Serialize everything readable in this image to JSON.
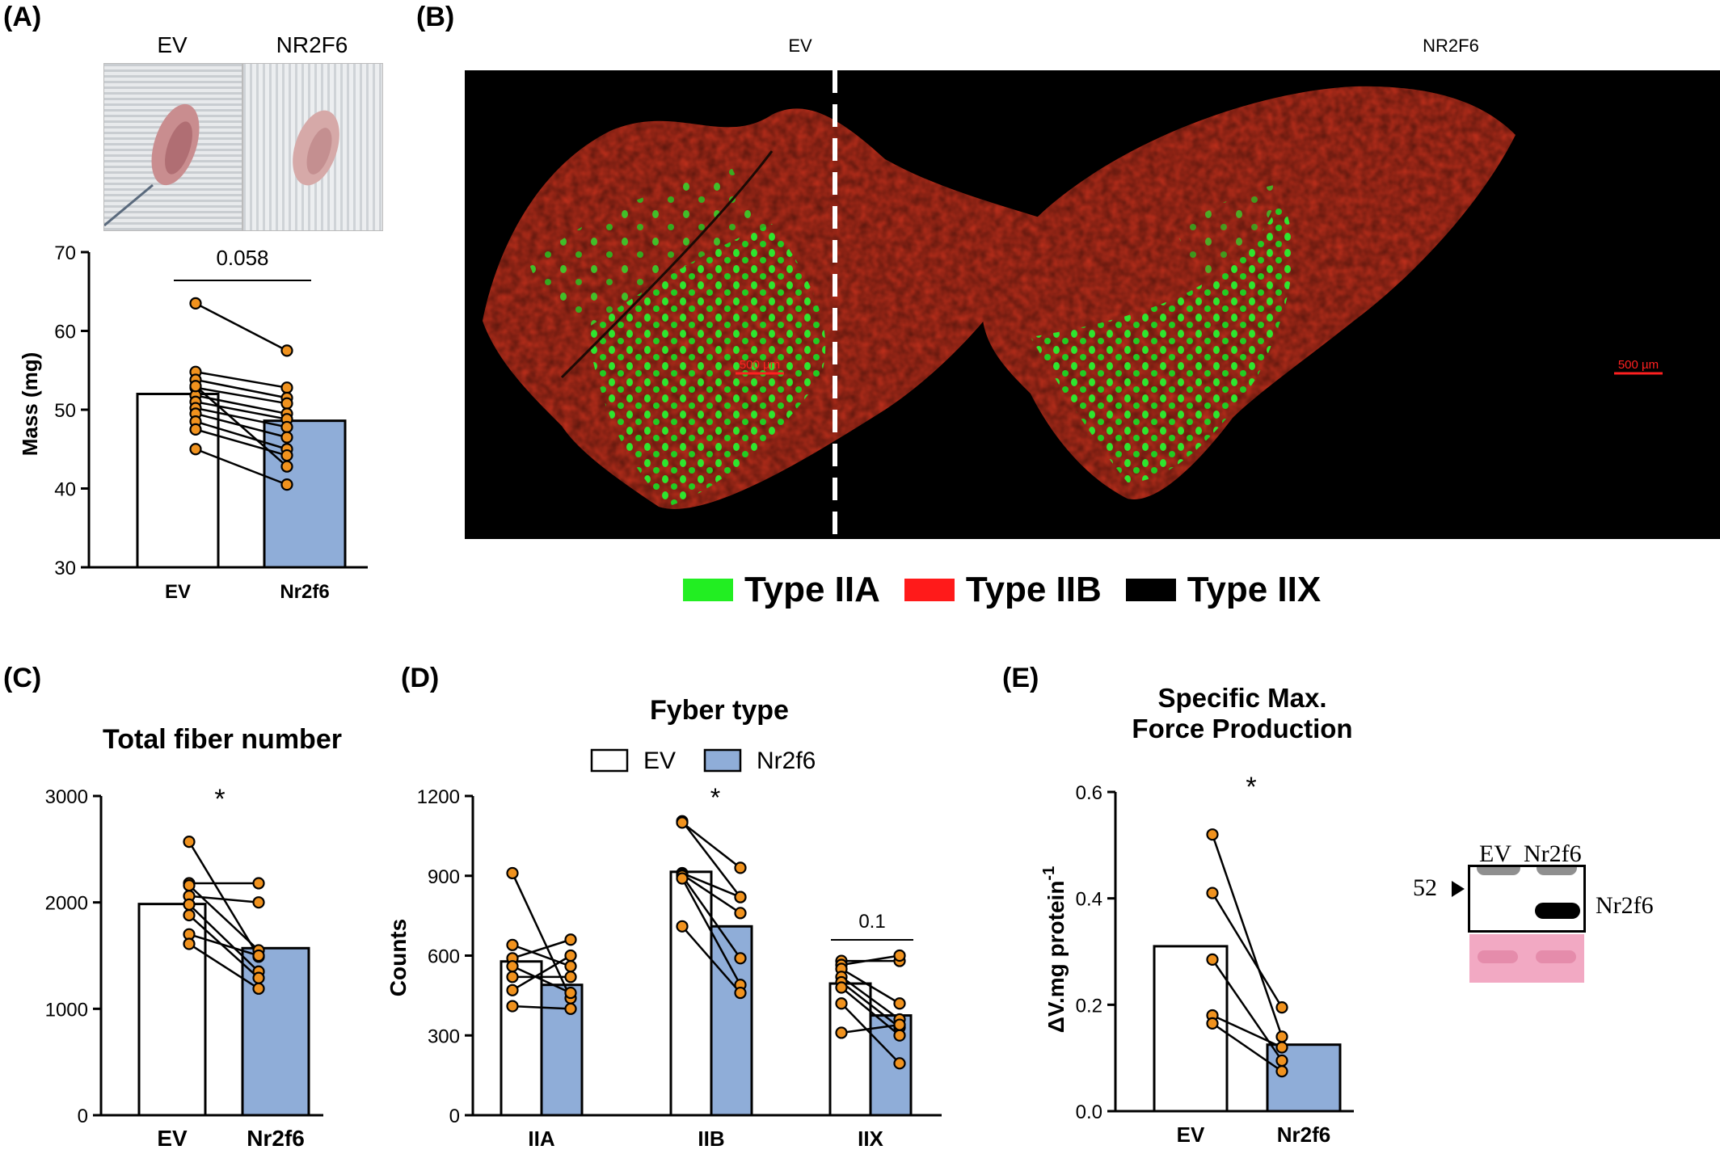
{
  "figure": {
    "panel_labels": [
      "(A)",
      "(B)",
      "(C)",
      "(D)",
      "(E)"
    ]
  },
  "panel_a": {
    "photo_labels": [
      "EV",
      "NR2F6"
    ]
  },
  "panel_b": {
    "image_labels": [
      "EV",
      "NR2F6"
    ],
    "scale_bar": "500 µm",
    "legend": [
      {
        "label": "Type IIA",
        "color": "#22ee22"
      },
      {
        "label": "Type IIB",
        "color": "#ff1a1a"
      },
      {
        "label": "Type IIX",
        "color": "#000000"
      }
    ]
  },
  "panel_e": {
    "blot": {
      "lane_labels": [
        "EV",
        "Nr2f6"
      ],
      "marker": "52",
      "band_label": "Nr2f6"
    }
  },
  "chart_data": [
    {
      "type": "bar",
      "panel": "A",
      "categories": [
        "EV",
        "Nr2f6"
      ],
      "values": [
        52,
        48.6
      ],
      "ylabel": "Mass (mg)",
      "ylim": [
        30,
        70
      ],
      "yticks": [
        "30",
        "40",
        "50",
        "60",
        "70"
      ],
      "annotation": "0.058",
      "colors": [
        "#ffffff",
        "#8fadd8"
      ],
      "paired_points": [
        [
          63.5,
          57.5
        ],
        [
          54.8,
          52.8
        ],
        [
          53.8,
          51.5
        ],
        [
          52.8,
          50.8
        ],
        [
          51.8,
          49.5
        ],
        [
          51.0,
          48.8
        ],
        [
          50.2,
          47.8
        ],
        [
          49.5,
          46.5
        ],
        [
          48.5,
          45.0
        ],
        [
          47.5,
          44.2
        ],
        [
          45.0,
          40.5
        ],
        [
          53.0,
          42.8
        ]
      ]
    },
    {
      "type": "bar",
      "panel": "C",
      "title": "Total fiber number",
      "categories": [
        "EV",
        "Nr2f6"
      ],
      "values": [
        1985,
        1570
      ],
      "ylim": [
        0,
        3000
      ],
      "yticks": [
        "0",
        "1000",
        "2000",
        "3000"
      ],
      "annotation": "*",
      "colors": [
        "#ffffff",
        "#8fadd8"
      ],
      "paired_points": [
        [
          2570,
          1490
        ],
        [
          2180,
          2180
        ],
        [
          2160,
          1550
        ],
        [
          2060,
          2000
        ],
        [
          1980,
          1350
        ],
        [
          1880,
          1290
        ],
        [
          1700,
          1500
        ],
        [
          1610,
          1190
        ]
      ]
    },
    {
      "type": "bar",
      "panel": "D",
      "title": "Fyber type",
      "ylabel": "Counts",
      "categories": [
        "IIA",
        "IIB",
        "IIX"
      ],
      "series": [
        {
          "name": "EV",
          "values": [
            578,
            915,
            495
          ],
          "color": "#ffffff"
        },
        {
          "name": "Nr2f6",
          "values": [
            490,
            710,
            375
          ],
          "color": "#8fadd8"
        }
      ],
      "ylim": [
        0,
        1200
      ],
      "yticks": [
        "0",
        "300",
        "600",
        "900",
        "1200"
      ],
      "annotations": {
        "IIB": "*",
        "IIX": "0.1"
      },
      "paired_points": {
        "IIA": [
          [
            910,
            440
          ],
          [
            640,
            560
          ],
          [
            590,
            660
          ],
          [
            560,
            460
          ],
          [
            520,
            520
          ],
          [
            470,
            600
          ],
          [
            410,
            400
          ]
        ],
        "IIB": [
          [
            1105,
            820
          ],
          [
            1100,
            930
          ],
          [
            910,
            820
          ],
          [
            905,
            760
          ],
          [
            900,
            590
          ],
          [
            890,
            490
          ],
          [
            710,
            460
          ]
        ],
        "IIX": [
          [
            580,
            580
          ],
          [
            565,
            600
          ],
          [
            550,
            420
          ],
          [
            520,
            360
          ],
          [
            500,
            330
          ],
          [
            480,
            300
          ],
          [
            420,
            195
          ],
          [
            310,
            340
          ]
        ]
      }
    },
    {
      "type": "bar",
      "panel": "E",
      "title": "Specific Max.\nForce Production",
      "title_lines": [
        "Specific Max.",
        "Force Production"
      ],
      "ylabel": "ΔV.mg protein",
      "ylabel_sup": "-1",
      "categories": [
        "EV",
        "Nr2f6"
      ],
      "values": [
        0.31,
        0.125
      ],
      "ylim": [
        0,
        0.6
      ],
      "yticks": [
        "0.0",
        "0.2",
        "0.4",
        "0.6"
      ],
      "annotation": "*",
      "colors": [
        "#ffffff",
        "#8fadd8"
      ],
      "paired_points": [
        [
          0.52,
          0.14
        ],
        [
          0.41,
          0.195
        ],
        [
          0.285,
          0.095
        ],
        [
          0.18,
          0.12
        ],
        [
          0.165,
          0.075
        ]
      ]
    }
  ]
}
